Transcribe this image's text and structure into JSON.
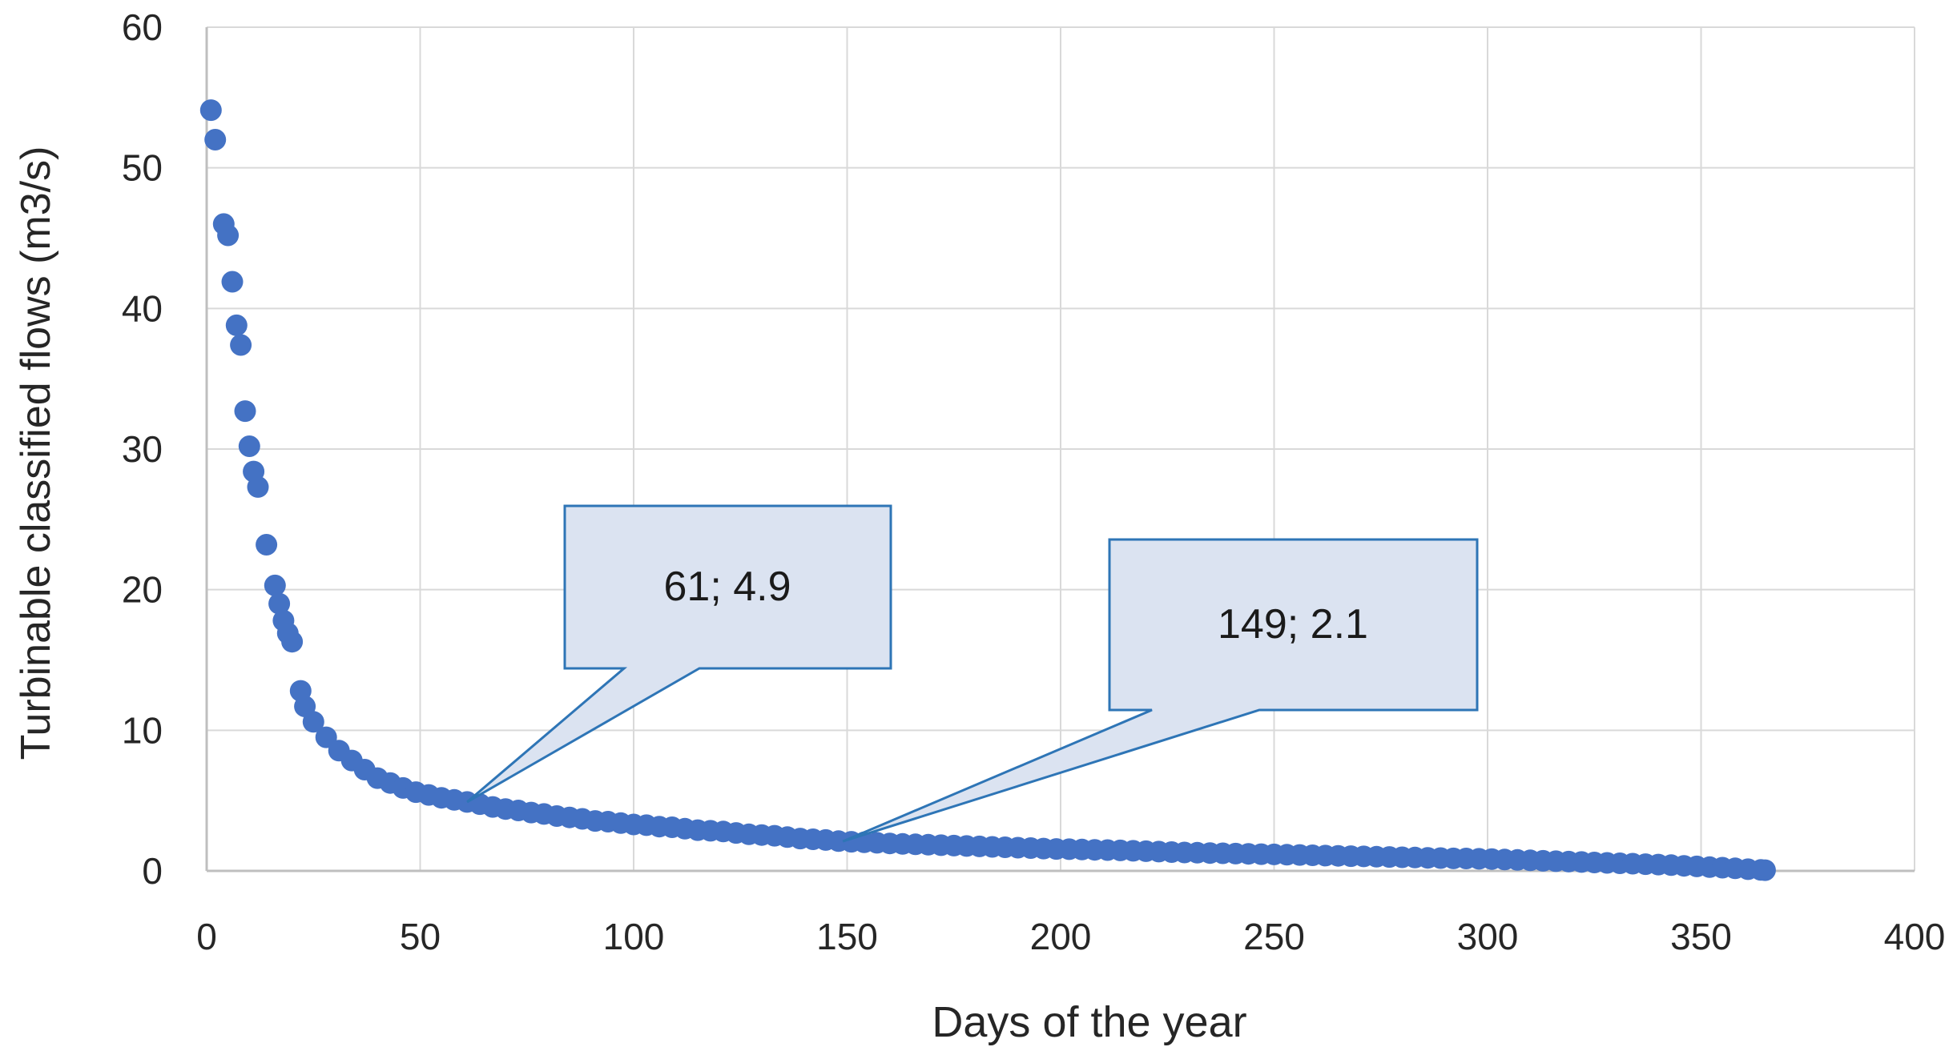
{
  "chart_data": {
    "type": "scatter",
    "title": "",
    "xlabel": "Days of the year",
    "ylabel": "Turbinable classified flows (m3/s)",
    "xlim": [
      0,
      400
    ],
    "ylim": [
      0,
      60
    ],
    "x_ticks": [
      0,
      50,
      100,
      150,
      200,
      250,
      300,
      350,
      400
    ],
    "y_ticks": [
      0,
      10,
      20,
      30,
      40,
      50,
      60
    ],
    "grid": true,
    "legend": "none",
    "series_name": "Turbinable classified flows",
    "annotations": [
      {
        "label": "61; 4.9",
        "x": 61,
        "y": 4.9
      },
      {
        "label": "149; 2.1",
        "x": 149,
        "y": 2.1
      }
    ],
    "points": [
      [
        1,
        54.1
      ],
      [
        2,
        52.0
      ],
      [
        4,
        46.0
      ],
      [
        5,
        45.2
      ],
      [
        6,
        41.9
      ],
      [
        7,
        38.8
      ],
      [
        8,
        37.4
      ],
      [
        9,
        32.7
      ],
      [
        10,
        30.2
      ],
      [
        11,
        28.4
      ],
      [
        12,
        27.3
      ],
      [
        14,
        23.2
      ],
      [
        16,
        20.3
      ],
      [
        17,
        19.0
      ],
      [
        18,
        17.8
      ],
      [
        19,
        16.9
      ],
      [
        20,
        16.3
      ],
      [
        22,
        12.8
      ],
      [
        23,
        11.7
      ],
      [
        25,
        10.6
      ],
      [
        28,
        9.5
      ],
      [
        31,
        8.55
      ],
      [
        34,
        7.85
      ],
      [
        37,
        7.2
      ],
      [
        40,
        6.6
      ],
      [
        43,
        6.25
      ],
      [
        46,
        5.9
      ],
      [
        49,
        5.6
      ],
      [
        52,
        5.4
      ],
      [
        55,
        5.2
      ],
      [
        58,
        5.05
      ],
      [
        61,
        4.9
      ],
      [
        64,
        4.75
      ],
      [
        67,
        4.55
      ],
      [
        70,
        4.4
      ],
      [
        73,
        4.3
      ],
      [
        76,
        4.15
      ],
      [
        79,
        4.05
      ],
      [
        82,
        3.9
      ],
      [
        85,
        3.8
      ],
      [
        88,
        3.7
      ],
      [
        91,
        3.55
      ],
      [
        94,
        3.5
      ],
      [
        97,
        3.4
      ],
      [
        100,
        3.3
      ],
      [
        103,
        3.25
      ],
      [
        106,
        3.15
      ],
      [
        109,
        3.1
      ],
      [
        112,
        3.0
      ],
      [
        115,
        2.9
      ],
      [
        118,
        2.85
      ],
      [
        121,
        2.8
      ],
      [
        124,
        2.7
      ],
      [
        127,
        2.6
      ],
      [
        130,
        2.55
      ],
      [
        133,
        2.5
      ],
      [
        136,
        2.4
      ],
      [
        139,
        2.3
      ],
      [
        142,
        2.25
      ],
      [
        145,
        2.2
      ],
      [
        148,
        2.12
      ],
      [
        151,
        2.07
      ],
      [
        154,
        2.03
      ],
      [
        157,
        2.0
      ],
      [
        160,
        1.95
      ],
      [
        163,
        1.92
      ],
      [
        166,
        1.89
      ],
      [
        169,
        1.86
      ],
      [
        172,
        1.83
      ],
      [
        175,
        1.8
      ],
      [
        178,
        1.77
      ],
      [
        181,
        1.74
      ],
      [
        184,
        1.71
      ],
      [
        187,
        1.68
      ],
      [
        190,
        1.65
      ],
      [
        193,
        1.62
      ],
      [
        196,
        1.59
      ],
      [
        199,
        1.56
      ],
      [
        202,
        1.54
      ],
      [
        205,
        1.52
      ],
      [
        208,
        1.5
      ],
      [
        211,
        1.48
      ],
      [
        214,
        1.46
      ],
      [
        217,
        1.43
      ],
      [
        220,
        1.4
      ],
      [
        223,
        1.37
      ],
      [
        226,
        1.34
      ],
      [
        229,
        1.31
      ],
      [
        232,
        1.29
      ],
      [
        235,
        1.27
      ],
      [
        238,
        1.25
      ],
      [
        241,
        1.23
      ],
      [
        244,
        1.21
      ],
      [
        247,
        1.19
      ],
      [
        250,
        1.17
      ],
      [
        253,
        1.15
      ],
      [
        256,
        1.13
      ],
      [
        259,
        1.11
      ],
      [
        262,
        1.09
      ],
      [
        265,
        1.07
      ],
      [
        268,
        1.05
      ],
      [
        271,
        1.03
      ],
      [
        274,
        1.01
      ],
      [
        277,
        0.99
      ],
      [
        280,
        0.97
      ],
      [
        283,
        0.95
      ],
      [
        286,
        0.93
      ],
      [
        289,
        0.91
      ],
      [
        292,
        0.89
      ],
      [
        295,
        0.88
      ],
      [
        298,
        0.86
      ],
      [
        301,
        0.84
      ],
      [
        304,
        0.81
      ],
      [
        307,
        0.78
      ],
      [
        310,
        0.75
      ],
      [
        313,
        0.72
      ],
      [
        316,
        0.69
      ],
      [
        319,
        0.66
      ],
      [
        322,
        0.63
      ],
      [
        325,
        0.6
      ],
      [
        328,
        0.57
      ],
      [
        331,
        0.54
      ],
      [
        334,
        0.51
      ],
      [
        337,
        0.48
      ],
      [
        340,
        0.45
      ],
      [
        343,
        0.41
      ],
      [
        346,
        0.36
      ],
      [
        349,
        0.32
      ],
      [
        352,
        0.27
      ],
      [
        355,
        0.23
      ],
      [
        358,
        0.18
      ],
      [
        361,
        0.12
      ],
      [
        364,
        0.07
      ],
      [
        365,
        0.05
      ]
    ]
  },
  "colors": {
    "background": "#FFFFFF",
    "gridline": "#D9D9D9",
    "axis_line": "#BFBFBF",
    "tick_label": "#262626",
    "axis_title": "#262626",
    "marker": "#4472C4",
    "callout_fill": "#DBE3F1",
    "callout_border": "#2E75B6",
    "callout_text": "#1A1A1A"
  }
}
